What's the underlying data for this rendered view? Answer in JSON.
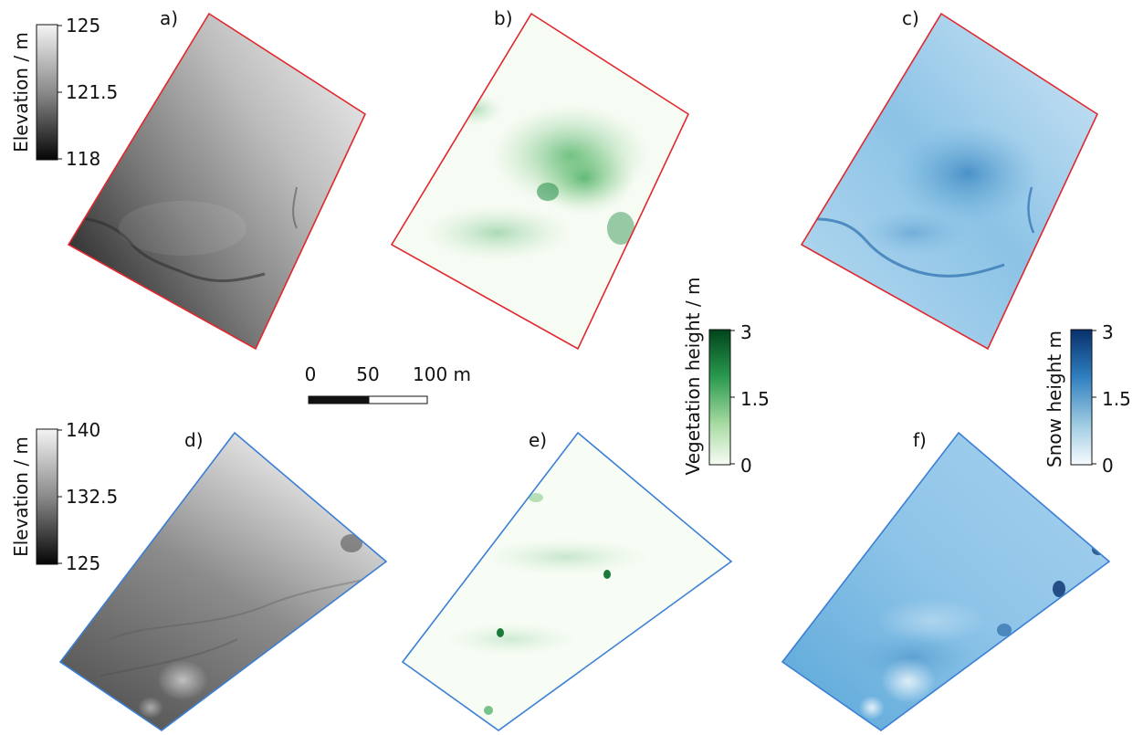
{
  "panels": [
    {
      "id": "a",
      "label": "a)",
      "kind": "elevation",
      "site": "top"
    },
    {
      "id": "b",
      "label": "b)",
      "kind": "vegetation",
      "site": "top"
    },
    {
      "id": "c",
      "label": "c)",
      "kind": "snow",
      "site": "top"
    },
    {
      "id": "d",
      "label": "d)",
      "kind": "elevation",
      "site": "bottom"
    },
    {
      "id": "e",
      "label": "e)",
      "kind": "vegetation",
      "site": "bottom"
    },
    {
      "id": "f",
      "label": "f)",
      "kind": "snow",
      "site": "bottom"
    }
  ],
  "colorbars": {
    "elevation_top": {
      "label": "Elevation / m",
      "ticks": [
        "125",
        "121.5",
        "118"
      ],
      "range": [
        118,
        125
      ],
      "colormap": "greys"
    },
    "elevation_bottom": {
      "label": "Elevation / m",
      "ticks": [
        "140",
        "132.5",
        "125"
      ],
      "range": [
        125,
        140
      ],
      "colormap": "greys"
    },
    "vegetation": {
      "label": "Vegetation height / m",
      "ticks": [
        "3",
        "1.5",
        "0"
      ],
      "range": [
        0,
        3
      ],
      "colormap": "greens"
    },
    "snow": {
      "label": "Snow height  m",
      "ticks": [
        "3",
        "1.5",
        "0"
      ],
      "range": [
        0,
        3
      ],
      "colormap": "blues"
    }
  },
  "scalebar": {
    "ticks": [
      "0",
      "50",
      "100 m"
    ]
  },
  "colors": {
    "outline_top": "#e0282e",
    "outline_bottom": "#3a7fd5",
    "elev_dark": "#1a1a1a",
    "elev_light": "#f2f2f2",
    "veg_dark": "#00441b",
    "veg_light": "#f7fcf5",
    "snow_dark": "#08306b",
    "snow_light": "#f7fbff"
  }
}
